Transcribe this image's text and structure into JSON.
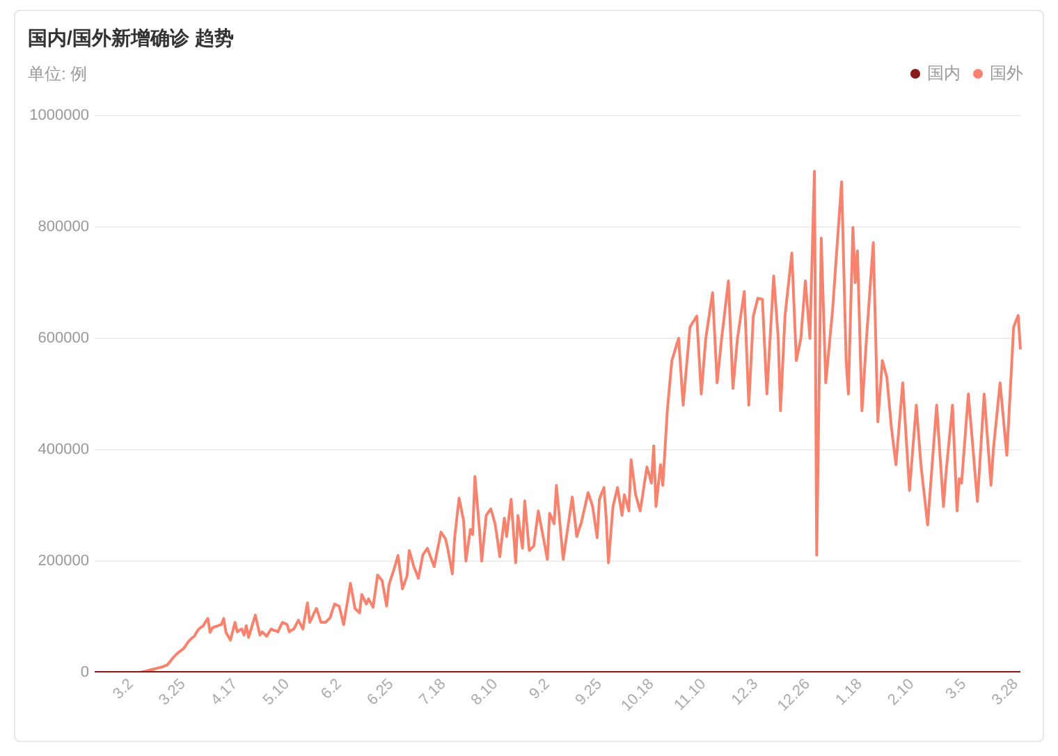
{
  "chart_data": {
    "type": "line",
    "title": "国内/国外新增确诊 趋势",
    "subtitle": "单位: 例",
    "categories": [
      null,
      null,
      null,
      null,
      null,
      null,
      null,
      null,
      null,
      null,
      null,
      null,
      null,
      null,
      null,
      null,
      "3.2",
      null,
      null,
      null,
      null,
      null,
      null,
      null,
      null,
      null,
      null,
      null,
      null,
      null,
      null,
      null,
      null,
      null,
      null,
      null,
      null,
      null,
      null,
      "3.25",
      null,
      null,
      null,
      null,
      null,
      null,
      null,
      null,
      null,
      null,
      null,
      null,
      null,
      null,
      null,
      null,
      null,
      null,
      null,
      null,
      null,
      null,
      "4.17",
      null,
      null,
      null,
      null,
      null,
      null,
      null,
      null,
      null,
      null,
      null,
      null,
      null,
      null,
      null,
      null,
      null,
      null,
      null,
      null,
      null,
      null,
      "5.10",
      null,
      null,
      null,
      null,
      null,
      null,
      null,
      null,
      null,
      null,
      null,
      null,
      null,
      null,
      null,
      null,
      null,
      null,
      null,
      null,
      null,
      null,
      "6.2",
      null,
      null,
      null,
      null,
      null,
      null,
      null,
      null,
      null,
      null,
      null,
      null,
      null,
      null,
      null,
      null,
      null,
      null,
      null,
      null,
      null,
      null,
      "6.25",
      null,
      null,
      null,
      null,
      null,
      null,
      null,
      null,
      null,
      null,
      null,
      null,
      null,
      null,
      null,
      null,
      null,
      null,
      null,
      null,
      null,
      null,
      "7.18",
      null,
      null,
      null,
      null,
      null,
      null,
      null,
      null,
      null,
      null,
      null,
      null,
      null,
      null,
      null,
      null,
      null,
      null,
      null,
      null,
      null,
      null,
      "8.10",
      null,
      null,
      null,
      null,
      null,
      null,
      null,
      null,
      null,
      null,
      null,
      null,
      null,
      null,
      null,
      null,
      null,
      null,
      null,
      null,
      null,
      null,
      "9.2",
      null,
      null,
      null,
      null,
      null,
      null,
      null,
      null,
      null,
      null,
      null,
      null,
      null,
      null,
      null,
      null,
      null,
      null,
      null,
      null,
      null,
      null,
      "9.25",
      null,
      null,
      null,
      null,
      null,
      null,
      null,
      null,
      null,
      null,
      null,
      null,
      null,
      null,
      null,
      null,
      null,
      null,
      null,
      null,
      null,
      null,
      "10.18",
      null,
      null,
      null,
      null,
      null,
      null,
      null,
      null,
      null,
      null,
      null,
      null,
      null,
      null,
      null,
      null,
      null,
      null,
      null,
      null,
      null,
      null,
      "11.10",
      null,
      null,
      null,
      null,
      null,
      null,
      null,
      null,
      null,
      null,
      null,
      null,
      null,
      null,
      null,
      null,
      null,
      null,
      null,
      null,
      null,
      null,
      "12.3",
      null,
      null,
      null,
      null,
      null,
      null,
      null,
      null,
      null,
      null,
      null,
      null,
      null,
      null,
      null,
      null,
      null,
      null,
      null,
      null,
      null,
      null,
      "12.26",
      null,
      null,
      null,
      null,
      null,
      null,
      null,
      null,
      null,
      null,
      null,
      null,
      null,
      null,
      null,
      null,
      null,
      null,
      null,
      null,
      null,
      null,
      "1.18",
      null,
      null,
      null,
      null,
      null,
      null,
      null,
      null,
      null,
      null,
      null,
      null,
      null,
      null,
      null,
      null,
      null,
      null,
      null,
      null,
      null,
      null,
      "2.10",
      null,
      null,
      null,
      null,
      null,
      null,
      null,
      null,
      null,
      null,
      null,
      null,
      null,
      null,
      null,
      null,
      null,
      null,
      null,
      null,
      null,
      null,
      "3.5",
      null,
      null,
      null,
      null,
      null,
      null,
      null,
      null,
      null,
      null,
      null,
      null,
      null,
      null,
      null,
      null,
      null,
      null,
      null,
      null,
      null,
      null,
      "3.28",
      null,
      null
    ],
    "ylim": [
      0,
      1000000
    ],
    "yticks": [
      0,
      200000,
      400000,
      600000,
      800000,
      1000000
    ],
    "grid": "y",
    "legend": "top right",
    "marker": "none",
    "line_style": "solid",
    "series": [
      {
        "name": "国内",
        "color": "#8b1a1a",
        "values": [
          0,
          0,
          0,
          0,
          0,
          0,
          0,
          0,
          0,
          0,
          0,
          0,
          0,
          0,
          0,
          0,
          0,
          0,
          0,
          0,
          0,
          0,
          0,
          0,
          0,
          0,
          0,
          0,
          0,
          0,
          0,
          0,
          0,
          0,
          0,
          0,
          0,
          0,
          0,
          0,
          0,
          0,
          0,
          0,
          0,
          0,
          0,
          0,
          0,
          0,
          0,
          0,
          0,
          0,
          0,
          0,
          0,
          0,
          0,
          0,
          0,
          0,
          0,
          0,
          0,
          0,
          0,
          0,
          0,
          0,
          0,
          0,
          0,
          0,
          0,
          0,
          0,
          0,
          0,
          0,
          0,
          0,
          0,
          0,
          0,
          0,
          0,
          0,
          0,
          0,
          0,
          0,
          0,
          0,
          0,
          0,
          0,
          0,
          0,
          0,
          0,
          0,
          0,
          0,
          0,
          0,
          0,
          0,
          0,
          0,
          0,
          0,
          0,
          0,
          0,
          0,
          0,
          0,
          0,
          0,
          0,
          0,
          0,
          0,
          0,
          0,
          0,
          0,
          0,
          0,
          0,
          0,
          0,
          0,
          0,
          0,
          0,
          0,
          0,
          0,
          0,
          0,
          0,
          0,
          0,
          0,
          0,
          0,
          0,
          0,
          0,
          0,
          0,
          0,
          0,
          0,
          0,
          0,
          0,
          0,
          0,
          0,
          0,
          0,
          0,
          0,
          0,
          0,
          0,
          0,
          0,
          0,
          0,
          0,
          0,
          0,
          0,
          0,
          0,
          0,
          0,
          0,
          0,
          0,
          0,
          0,
          0,
          0,
          0,
          0,
          0,
          0,
          0,
          0,
          0,
          0,
          0,
          0,
          0,
          0,
          0,
          0,
          0,
          0,
          0,
          0,
          0,
          0,
          0,
          0,
          0,
          0,
          0,
          0,
          0,
          0,
          0,
          0,
          0,
          0,
          0,
          0,
          0,
          0,
          0,
          0,
          0,
          0,
          0,
          0,
          0,
          0,
          0,
          0,
          0,
          0,
          0,
          0,
          0,
          0,
          0,
          0,
          0,
          0,
          0,
          0,
          0,
          0,
          0,
          0,
          0,
          0,
          0,
          0,
          0,
          0,
          0,
          0,
          0,
          0,
          0,
          0,
          0,
          0,
          0,
          0,
          0,
          0,
          0,
          0,
          0,
          0,
          0,
          0,
          0,
          0,
          0,
          0,
          0,
          0,
          0,
          0,
          0,
          0,
          0,
          0,
          0,
          0,
          0,
          0,
          0,
          0,
          0,
          0,
          0,
          0,
          0,
          0,
          0,
          0,
          0,
          0,
          0,
          0,
          0,
          0,
          0,
          0,
          0,
          0,
          0,
          0,
          0,
          0,
          0,
          0,
          0,
          0,
          0,
          0,
          0,
          0,
          0,
          0,
          0,
          0,
          0,
          0,
          0,
          0,
          0,
          0,
          0,
          0,
          0,
          0,
          0,
          0,
          0,
          0,
          0,
          0,
          0,
          0,
          0,
          0,
          0,
          0,
          0,
          0,
          0,
          0,
          0,
          0,
          0,
          0,
          0,
          0,
          0,
          0,
          0,
          0,
          0,
          0,
          0,
          0,
          0,
          0,
          0,
          0,
          0,
          0,
          0,
          0,
          0,
          0,
          0,
          0,
          0,
          0,
          0,
          0,
          0,
          0,
          0,
          0,
          0,
          0,
          0,
          0,
          0,
          0,
          0,
          0,
          0,
          0,
          0,
          0,
          0,
          0,
          0,
          0,
          0,
          0,
          0,
          0,
          0,
          0,
          0,
          0
        ]
      },
      {
        "name": "国外",
        "color": "#f7826e",
        "values": [
          null,
          null,
          null,
          null,
          null,
          null,
          null,
          null,
          null,
          null,
          null,
          null,
          null,
          null,
          null,
          null,
          null,
          null,
          null,
          null,
          0,
          1000,
          2000,
          3000,
          4000,
          5000,
          6000,
          7000,
          8000,
          9000,
          10000,
          12000,
          13000,
          18000,
          23000,
          28000,
          32000,
          36000,
          39000,
          42000,
          47000,
          53000,
          58000,
          62000,
          65000,
          72000,
          78000,
          81000,
          84000,
          91000,
          97000,
          72000,
          80000,
          82000,
          83000,
          85000,
          86000,
          97000,
          72000,
          65000,
          58000,
          74000,
          90000,
          73000,
          76000,
          78000,
          67000,
          84000,
          63000,
          76000,
          90000,
          103000,
          85000,
          67000,
          73000,
          69000,
          65000,
          72000,
          78000,
          76000,
          75000,
          73000,
          82000,
          90000,
          88000,
          86000,
          73000,
          76000,
          78000,
          86000,
          94000,
          86000,
          78000,
          102000,
          125000,
          90000,
          98000,
          107000,
          115000,
          103000,
          90000,
          90000,
          90000,
          94000,
          98000,
          111000,
          123000,
          121000,
          119000,
          103000,
          86000,
          111000,
          135000,
          160000,
          138000,
          115000,
          111000,
          107000,
          140000,
          132000,
          123000,
          132000,
          125000,
          117000,
          146000,
          175000,
          170000,
          165000,
          142000,
          119000,
          157000,
          170000,
          182000,
          196000,
          210000,
          180000,
          150000,
          162000,
          173000,
          219000,
          205000,
          190000,
          180000,
          169000,
          190000,
          211000,
          217000,
          223000,
          212000,
          201000,
          190000,
          211000,
          231000,
          252000,
          246000,
          240000,
          222000,
          200000,
          177000,
          240000,
          277000,
          313000,
          293000,
          273000,
          200000,
          229000,
          257000,
          248000,
          352000,
          305000,
          257000,
          200000,
          241000,
          282000,
          288000,
          294000,
          280000,
          265000,
          237000,
          208000,
          243000,
          277000,
          244000,
          278000,
          311000,
          254000,
          197000,
          282000,
          253000,
          223000,
          308000,
          264000,
          219000,
          223000,
          227000,
          259000,
          290000,
          268000,
          247000,
          225000,
          203000,
          286000,
          277000,
          267000,
          336000,
          292000,
          247000,
          203000,
          231000,
          259000,
          287000,
          315000,
          280000,
          244000,
          257000,
          269000,
          287000,
          305000,
          323000,
          311000,
          298000,
          270000,
          242000,
          311000,
          322000,
          332000,
          277000,
          197000,
          248000,
          298000,
          315000,
          332000,
          307000,
          282000,
          319000,
          305000,
          290000,
          382000,
          351000,
          319000,
          305000,
          290000,
          316000,
          343000,
          369000,
          355000,
          340000,
          407000,
          298000,
          336000,
          373000,
          336000,
          403000,
          470000,
          515000,
          560000,
          573000,
          587000,
          600000,
          540000,
          480000,
          527000,
          573000,
          620000,
          627000,
          633000,
          640000,
          570000,
          500000,
          550000,
          600000,
          627000,
          655000,
          682000,
          601000,
          520000,
          560000,
          600000,
          634000,
          669000,
          703000,
          607000,
          510000,
          555000,
          600000,
          628000,
          656000,
          684000,
          582000,
          480000,
          560000,
          640000,
          656000,
          672000,
          671000,
          670000,
          585000,
          500000,
          571000,
          641000,
          712000,
          656000,
          600000,
          470000,
          555000,
          640000,
          678000,
          715000,
          753000,
          657000,
          560000,
          580000,
          600000,
          652000,
          703000,
          652000,
          600000,
          750000,
          900000,
          211000,
          496000,
          780000,
          650000,
          520000,
          563000,
          607000,
          650000,
          708000,
          766000,
          823000,
          881000,
          721000,
          560000,
          500000,
          650000,
          799000,
          700000,
          757000,
          614000,
          470000,
          535000,
          600000,
          657000,
          715000,
          772000,
          611000,
          450000,
          505000,
          560000,
          545000,
          530000,
          485000,
          440000,
          407000,
          373000,
          422000,
          471000,
          520000,
          456000,
          391000,
          327000,
          378000,
          429000,
          480000,
          428000,
          375000,
          338000,
          302000,
          265000,
          319000,
          373000,
          426000,
          480000,
          419000,
          359000,
          298000,
          352000,
          395000,
          437000,
          480000,
          385000,
          290000,
          348000,
          340000,
          393000,
          447000,
          500000,
          452000,
          404000,
          355000,
          307000,
          371000,
          436000,
          500000,
          445000,
          391000,
          336000,
          398000,
          439000,
          479000,
          520000,
          477000,
          433000,
          390000,
          467000,
          543000,
          620000,
          631000,
          641000,
          580000
        ]
      }
    ]
  }
}
